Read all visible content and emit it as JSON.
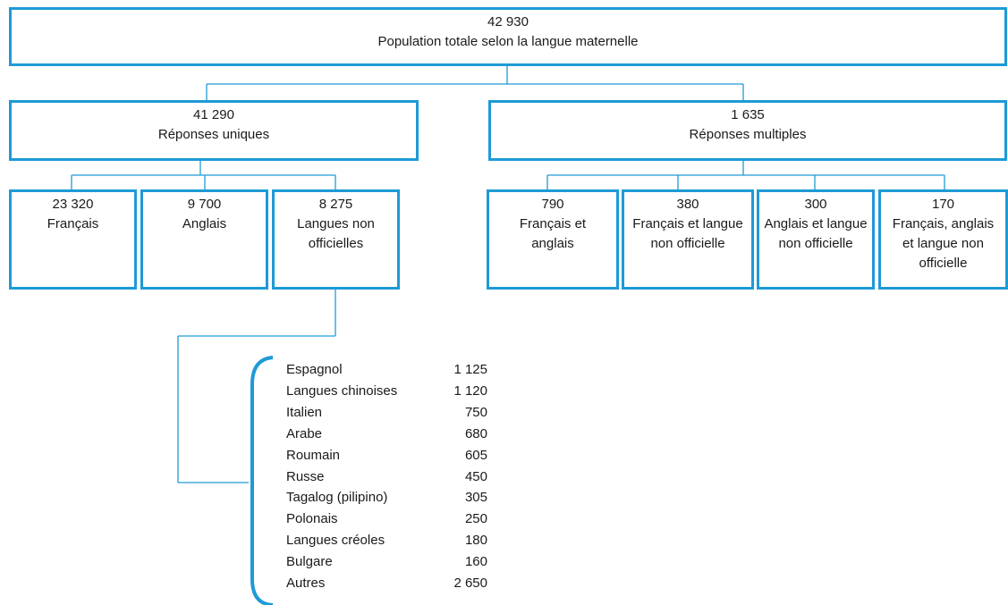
{
  "root": {
    "value": "42 930",
    "label": "Population totale selon la langue maternelle"
  },
  "single": {
    "value": "41 290",
    "label": "Réponses uniques"
  },
  "multiple": {
    "value": "1 635",
    "label": "Réponses multiples"
  },
  "single_children": [
    {
      "value": "23 320",
      "label": "Français"
    },
    {
      "value": "9 700",
      "label": "Anglais"
    },
    {
      "value": "8 275",
      "label": "Langues non\nofficielles"
    }
  ],
  "multiple_children": [
    {
      "value": "790",
      "label": "Français et\nanglais"
    },
    {
      "value": "380",
      "label": "Français et langue\nnon officielle"
    },
    {
      "value": "300",
      "label": "Anglais et langue\nnon officielle"
    },
    {
      "value": "170",
      "label": "Français, anglais\net langue non\nofficielle"
    }
  ],
  "non_official_languages": [
    {
      "name": "Espagnol",
      "value": "1 125"
    },
    {
      "name": "Langues chinoises",
      "value": "1 120"
    },
    {
      "name": "Italien",
      "value": "750"
    },
    {
      "name": "Arabe",
      "value": "680"
    },
    {
      "name": "Roumain",
      "value": "605"
    },
    {
      "name": "Russe",
      "value": "450"
    },
    {
      "name": "Tagalog (pilipino)",
      "value": "305"
    },
    {
      "name": "Polonais",
      "value": "250"
    },
    {
      "name": "Langues créoles",
      "value": "180"
    },
    {
      "name": "Bulgare",
      "value": "160"
    },
    {
      "name": "Autres",
      "value": "2 650"
    }
  ],
  "colors": {
    "accent": "#1e9ad6"
  }
}
